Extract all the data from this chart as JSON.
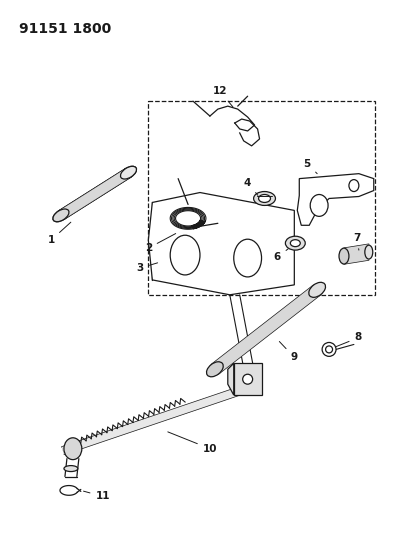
{
  "title": "91151 1800",
  "bg_color": "#ffffff",
  "line_color": "#1a1a1a",
  "title_fontsize": 10,
  "label_fontsize": 7.5,
  "figsize": [
    3.96,
    5.33
  ],
  "dpi": 100
}
